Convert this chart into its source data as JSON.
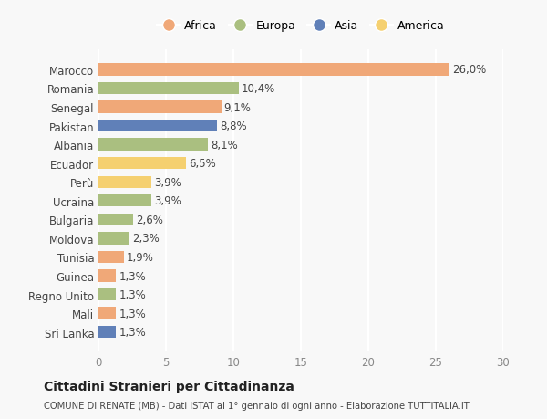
{
  "countries": [
    "Marocco",
    "Romania",
    "Senegal",
    "Pakistan",
    "Albania",
    "Ecuador",
    "Perù",
    "Ucraina",
    "Bulgaria",
    "Moldova",
    "Tunisia",
    "Guinea",
    "Regno Unito",
    "Mali",
    "Sri Lanka"
  ],
  "values": [
    26.0,
    10.4,
    9.1,
    8.8,
    8.1,
    6.5,
    3.9,
    3.9,
    2.6,
    2.3,
    1.9,
    1.3,
    1.3,
    1.3,
    1.3
  ],
  "labels": [
    "26,0%",
    "10,4%",
    "9,1%",
    "8,8%",
    "8,1%",
    "6,5%",
    "3,9%",
    "3,9%",
    "2,6%",
    "2,3%",
    "1,9%",
    "1,3%",
    "1,3%",
    "1,3%",
    "1,3%"
  ],
  "continents": [
    "Africa",
    "Europa",
    "Africa",
    "Asia",
    "Europa",
    "America",
    "America",
    "Europa",
    "Europa",
    "Europa",
    "Africa",
    "Africa",
    "Europa",
    "Africa",
    "Asia"
  ],
  "continent_colors": {
    "Africa": "#F0A878",
    "Europa": "#AABF80",
    "Asia": "#6080B8",
    "America": "#F5D070"
  },
  "legend_order": [
    "Africa",
    "Europa",
    "Asia",
    "America"
  ],
  "xlim": [
    0,
    30
  ],
  "xticks": [
    0,
    5,
    10,
    15,
    20,
    25,
    30
  ],
  "title": "Cittadini Stranieri per Cittadinanza",
  "subtitle": "COMUNE DI RENATE (MB) - Dati ISTAT al 1° gennaio di ogni anno - Elaborazione TUTTITALIA.IT",
  "bg_color": "#f8f8f8",
  "grid_color": "#ffffff",
  "label_fontsize": 8.5,
  "bar_height": 0.65
}
